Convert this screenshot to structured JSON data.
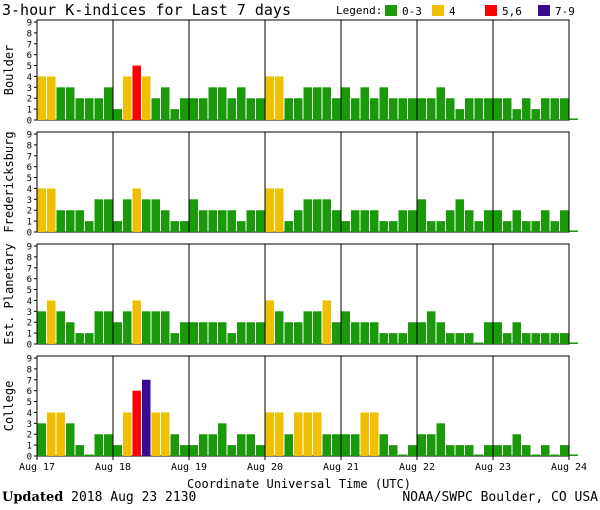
{
  "title": "3-hour K-indices for Last 7 days",
  "legend": {
    "label": "Legend:",
    "items": [
      {
        "label": "0-3",
        "color": "#1a9a0a"
      },
      {
        "label": "4",
        "color": "#f0c000"
      },
      {
        "label": "5,6",
        "color": "#ff0000"
      },
      {
        "label": "7-9",
        "color": "#3a0a90"
      }
    ]
  },
  "colors": {
    "low": "#1a9a0a",
    "four": "#f0c000",
    "five_six": "#ff0000",
    "high": "#3a0a90"
  },
  "footer": {
    "updated_label": "Updated",
    "updated_value": "2018 Aug 23 2130",
    "source": "NOAA/SWPC Boulder, CO USA"
  },
  "chart_data": {
    "type": "bar",
    "xlabel": "Coordinate Universal Time (UTC)",
    "x_ticks": [
      "Aug 17",
      "Aug 18",
      "Aug 19",
      "Aug 20",
      "Aug 21",
      "Aug 22",
      "Aug 23",
      "Aug 24"
    ],
    "ylim": [
      0,
      9
    ],
    "y_ticks": [
      0,
      1,
      2,
      3,
      4,
      5,
      6,
      7,
      8,
      9
    ],
    "grid": false,
    "legend_position": "top-right",
    "bars_per_day": 8,
    "panels": [
      {
        "name": "Boulder",
        "values": [
          4,
          4,
          3,
          3,
          2,
          2,
          2,
          3,
          1,
          4,
          5,
          4,
          2,
          3,
          1,
          2,
          2,
          2,
          3,
          3,
          2,
          3,
          2,
          2,
          4,
          4,
          2,
          2,
          3,
          3,
          3,
          2,
          3,
          2,
          3,
          2,
          3,
          2,
          2,
          2,
          2,
          2,
          3,
          2,
          1,
          2,
          2,
          2,
          2,
          2,
          1,
          2,
          1,
          2,
          2,
          2,
          0
        ]
      },
      {
        "name": "Fredericksburg",
        "values": [
          4,
          4,
          2,
          2,
          2,
          1,
          3,
          3,
          1,
          3,
          4,
          3,
          3,
          2,
          1,
          1,
          3,
          2,
          2,
          2,
          2,
          1,
          2,
          2,
          4,
          4,
          1,
          2,
          3,
          3,
          3,
          2,
          1,
          2,
          2,
          2,
          1,
          1,
          2,
          2,
          3,
          1,
          1,
          2,
          3,
          2,
          1,
          2,
          2,
          1,
          2,
          1,
          1,
          2,
          1,
          2,
          0
        ]
      },
      {
        "name": "Est. Planetary",
        "values": [
          3,
          4,
          3,
          2,
          1,
          1,
          3,
          3,
          2,
          3,
          4,
          3,
          3,
          3,
          1,
          2,
          2,
          2,
          2,
          2,
          1,
          2,
          2,
          2,
          4,
          3,
          2,
          2,
          3,
          3,
          4,
          2,
          3,
          2,
          2,
          2,
          1,
          1,
          1,
          2,
          2,
          3,
          2,
          1,
          1,
          1,
          0,
          2,
          2,
          1,
          2,
          1,
          1,
          1,
          1,
          1,
          0
        ]
      },
      {
        "name": "College",
        "values": [
          3,
          4,
          4,
          3,
          1,
          0,
          2,
          2,
          1,
          4,
          6,
          7,
          4,
          4,
          2,
          1,
          1,
          2,
          2,
          3,
          1,
          2,
          2,
          1,
          4,
          4,
          2,
          4,
          4,
          4,
          2,
          2,
          2,
          2,
          4,
          4,
          2,
          1,
          0,
          1,
          2,
          2,
          3,
          1,
          1,
          1,
          0,
          1,
          1,
          1,
          2,
          1,
          0,
          1,
          0,
          1,
          0
        ]
      }
    ]
  }
}
